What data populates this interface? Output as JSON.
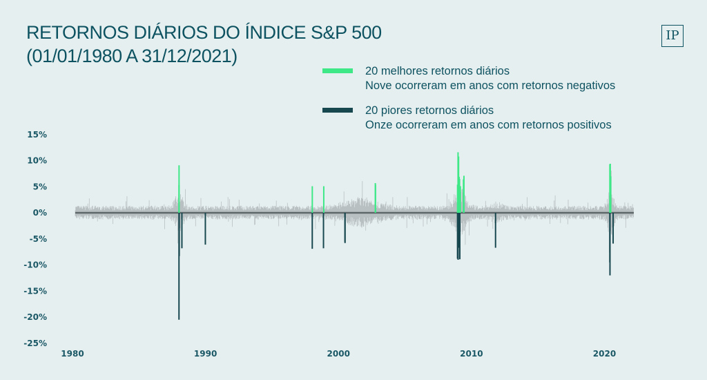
{
  "header": {
    "title": "RETORNOS DIÁRIOS DO ÍNDICE S&P 500",
    "subtitle": "(01/01/1980 A 31/12/2021)",
    "logo_text": "IP"
  },
  "colors": {
    "background": "#e6eff0",
    "best": "#3ee887",
    "worst": "#17474f",
    "noise": "#b9c0c2",
    "text": "#0d5260"
  },
  "chart_data": {
    "type": "bar",
    "title": "RETORNOS DIÁRIOS DO ÍNDICE S&P 500",
    "subtitle": "(01/01/1980 A 31/12/2021)",
    "xlim": [
      1980,
      2022
    ],
    "ylim": [
      -25,
      15
    ],
    "x_ticks": [
      "1980",
      "1990",
      "2000",
      "2010",
      "2020"
    ],
    "y_ticks": [
      15,
      10,
      5,
      0,
      -5,
      -10,
      -15,
      -20,
      -25
    ],
    "y_tick_labels": [
      "15%",
      "10%",
      "5%",
      "0%",
      "-5%",
      "-10%",
      "-15%",
      "-20%",
      "-25%"
    ],
    "grid": false,
    "legend_placement": "top-right",
    "legend": [
      {
        "label": "20 melhores retornos diários",
        "note": "Nove ocorreram em anos com retornos negativos",
        "color": "#3ee887"
      },
      {
        "label": "20 piores retornos diários",
        "note": "Onze ocorreram em anos com retornos positivos",
        "color": "#17474f"
      }
    ],
    "series": [
      {
        "name": "20 melhores retornos diários",
        "points": [
          {
            "date": "1987-10-21",
            "value": 9.1
          },
          {
            "date": "1987-10-20",
            "value": 5.3
          },
          {
            "date": "1997-10-28",
            "value": 5.1
          },
          {
            "date": "1998-09-08",
            "value": 5.1
          },
          {
            "date": "2002-07-24",
            "value": 5.7
          },
          {
            "date": "2008-09-30",
            "value": 5.4
          },
          {
            "date": "2008-10-13",
            "value": 11.6
          },
          {
            "date": "2008-10-20",
            "value": 4.8
          },
          {
            "date": "2008-10-28",
            "value": 10.8
          },
          {
            "date": "2008-11-13",
            "value": 6.9
          },
          {
            "date": "2008-11-21",
            "value": 6.3
          },
          {
            "date": "2008-11-24",
            "value": 6.5
          },
          {
            "date": "2008-12-16",
            "value": 5.1
          },
          {
            "date": "2009-03-10",
            "value": 6.4
          },
          {
            "date": "2009-03-23",
            "value": 7.1
          },
          {
            "date": "2020-03-13",
            "value": 9.3
          },
          {
            "date": "2020-03-24",
            "value": 9.4
          },
          {
            "date": "2020-03-26",
            "value": 6.2
          },
          {
            "date": "2020-04-06",
            "value": 7.0
          },
          {
            "date": "2002-07-29",
            "value": 5.4
          }
        ]
      },
      {
        "name": "20 piores retornos diários",
        "points": [
          {
            "date": "1987-10-19",
            "value": -20.5
          },
          {
            "date": "1987-10-26",
            "value": -8.3
          },
          {
            "date": "1988-01-08",
            "value": -6.8
          },
          {
            "date": "1989-10-13",
            "value": -6.1
          },
          {
            "date": "1997-10-27",
            "value": -6.9
          },
          {
            "date": "1998-08-31",
            "value": -6.8
          },
          {
            "date": "2000-04-14",
            "value": -5.8
          },
          {
            "date": "2000-04-12",
            "value": -5.6
          },
          {
            "date": "2008-09-29",
            "value": -8.8
          },
          {
            "date": "2008-10-07",
            "value": -5.7
          },
          {
            "date": "2008-10-09",
            "value": -7.6
          },
          {
            "date": "2008-10-15",
            "value": -9.0
          },
          {
            "date": "2008-10-22",
            "value": -6.1
          },
          {
            "date": "2008-11-19",
            "value": -6.1
          },
          {
            "date": "2008-11-20",
            "value": -6.7
          },
          {
            "date": "2008-12-01",
            "value": -8.9
          },
          {
            "date": "2011-08-08",
            "value": -6.7
          },
          {
            "date": "2020-03-12",
            "value": -9.5
          },
          {
            "date": "2020-03-16",
            "value": -12.0
          },
          {
            "date": "2020-06-11",
            "value": -5.9
          }
        ]
      }
    ]
  }
}
